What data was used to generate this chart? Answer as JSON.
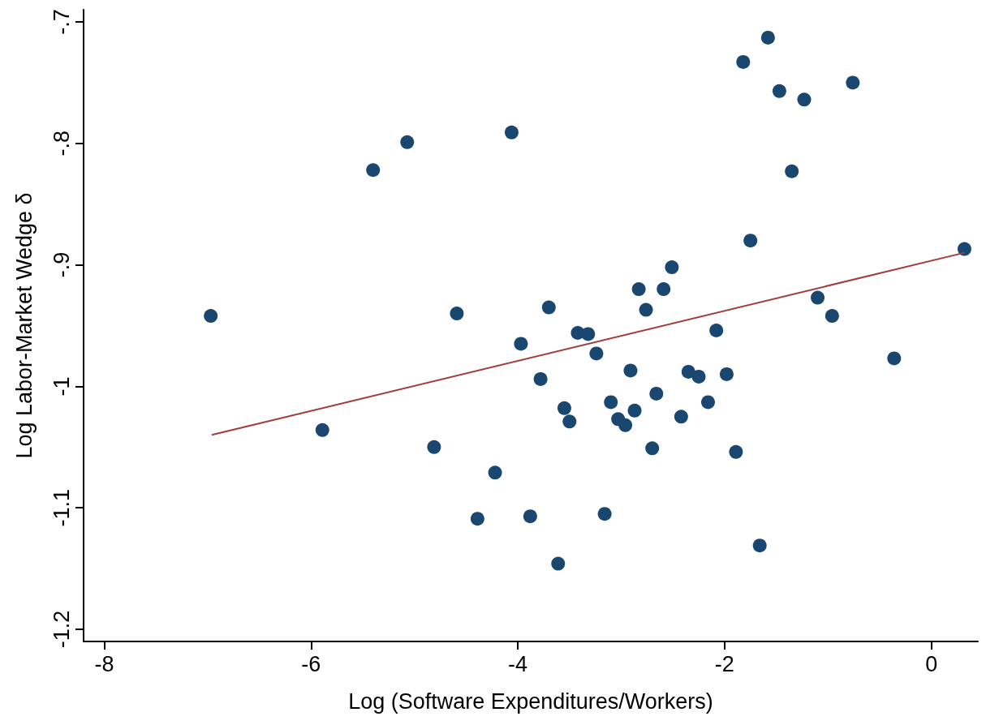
{
  "chart_data": {
    "type": "scatter",
    "xlabel": "Log (Software Expenditures/Workers)",
    "ylabel": "Log Labor-Market Wedge δ",
    "xlim": [
      -8.2,
      0.45
    ],
    "xticks": [
      -8,
      -6,
      -4,
      -2,
      0
    ],
    "ylim": [
      -1.21,
      -0.69
    ],
    "yticks": [
      {
        "value": -1.2,
        "label": "-1.2"
      },
      {
        "value": -1.1,
        "label": "-1.1"
      },
      {
        "value": -1,
        "label": "-1"
      },
      {
        "value": -0.9,
        "label": "-.9"
      },
      {
        "value": -0.8,
        "label": "-.8"
      },
      {
        "value": -0.7,
        "label": "-.7"
      }
    ],
    "grid": false,
    "marker": "circle",
    "series": [
      {
        "color": "#1a476f",
        "x": [
          -6.97,
          -5.89,
          -5.4,
          -5.07,
          -4.81,
          -4.59,
          -4.22,
          -4.39,
          -4.06,
          -3.97,
          -3.88,
          -3.78,
          -3.7,
          -3.61,
          -3.55,
          -3.5,
          -3.42,
          -3.32,
          -3.24,
          -3.16,
          -3.1,
          -3.03,
          -2.96,
          -2.87,
          -2.91,
          -2.83,
          -2.76,
          -2.7,
          -2.66,
          -2.59,
          -2.51,
          -2.42,
          -2.35,
          -2.25,
          -2.16,
          -2.08,
          -1.98,
          -1.89,
          -1.82,
          -1.75,
          -1.66,
          -1.58,
          -1.47,
          -1.35,
          -1.23,
          -1.1,
          -0.96,
          -0.76,
          -0.36,
          0.32
        ],
        "values": [
          -0.942,
          -1.036,
          -0.822,
          -0.799,
          -1.05,
          -0.94,
          -1.071,
          -1.109,
          -0.791,
          -0.965,
          -1.107,
          -0.994,
          -0.935,
          -1.146,
          -1.018,
          -1.029,
          -0.956,
          -0.957,
          -0.973,
          -1.105,
          -1.013,
          -1.027,
          -1.032,
          -1.02,
          -0.987,
          -0.92,
          -0.937,
          -1.051,
          -1.006,
          -0.92,
          -0.902,
          -1.025,
          -0.988,
          -0.992,
          -1.013,
          -0.954,
          -0.99,
          -1.054,
          -0.733,
          -0.88,
          -1.131,
          -0.713,
          -0.757,
          -0.823,
          -0.764,
          -0.927,
          -0.942,
          -0.75,
          -0.977,
          -0.887
        ]
      },
      {
        "type": "line",
        "color": "#a03c3c",
        "marker": "none",
        "x": [
          -6.96,
          0.32
        ],
        "values": [
          -1.04,
          -0.89
        ]
      }
    ]
  }
}
